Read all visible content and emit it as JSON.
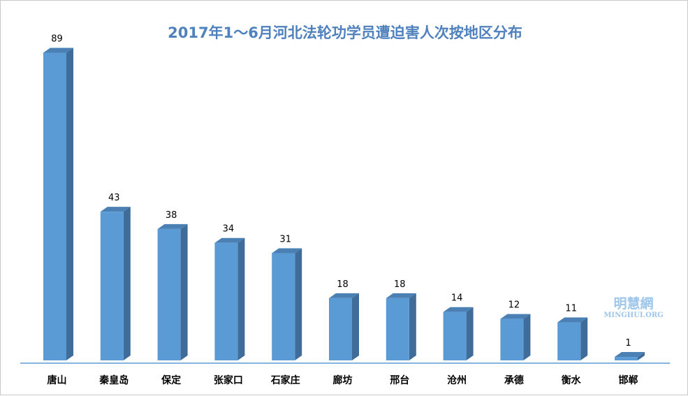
{
  "chart_data": {
    "type": "bar",
    "title": "2017年1～6月河北法轮功学员遭迫害人次按地区分布",
    "categories": [
      "唐山",
      "秦皇岛",
      "保定",
      "张家口",
      "石家庄",
      "廊坊",
      "邢台",
      "沧州",
      "承德",
      "衡水",
      "邯郸"
    ],
    "values": [
      89,
      43,
      38,
      34,
      31,
      18,
      18,
      14,
      12,
      11,
      1
    ],
    "xlabel": "",
    "ylabel": "",
    "ylim": [
      0,
      100
    ],
    "grid": false,
    "legend": "none",
    "colors": {
      "bar_front": "#5b9bd5",
      "bar_side": "#3f6c98",
      "bar_top": "#4a80b4",
      "axis": "#5b9bd5"
    }
  },
  "watermark": {
    "name": "明慧網",
    "site": "MINGHUI.ORG"
  }
}
